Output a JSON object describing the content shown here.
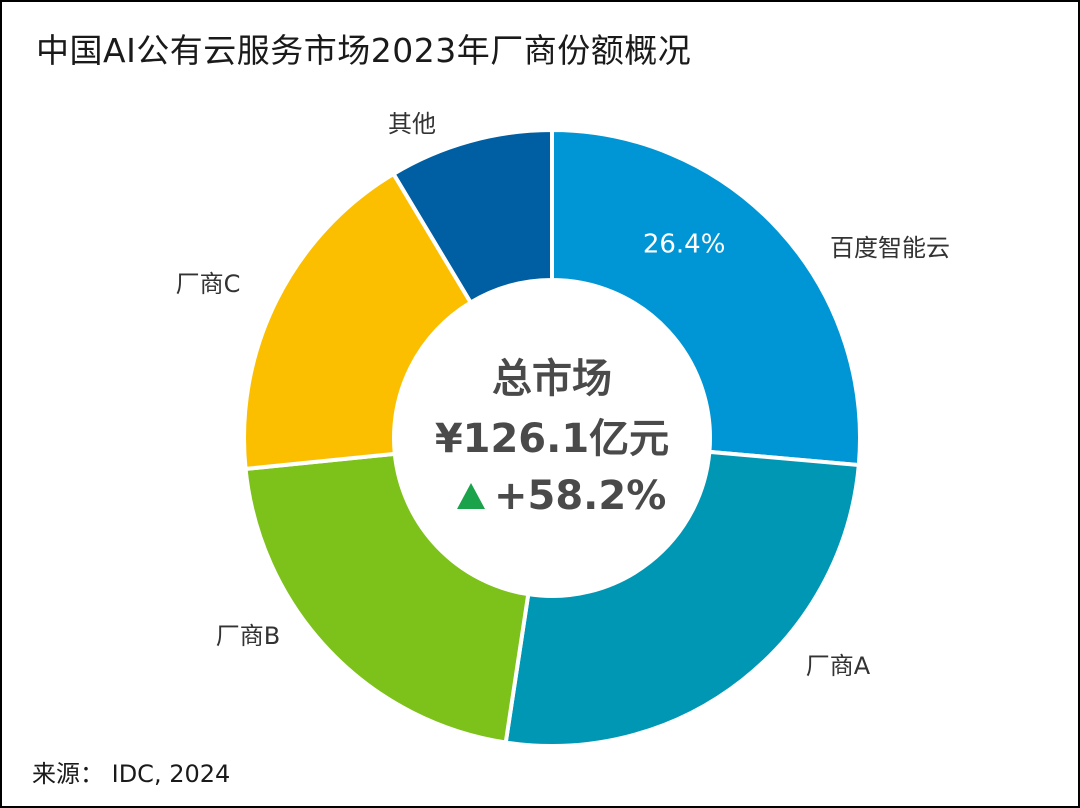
{
  "title": "中国AI公有云服务市场2023年厂商份额概况",
  "source": "来源： IDC, 2024",
  "center": {
    "line1": "总市场",
    "line2": "¥126.1亿元",
    "growth": "+58.2%",
    "growth_icon": "up-triangle-icon",
    "growth_color": "#1aa34a"
  },
  "chart_data": {
    "type": "pie",
    "variant": "donut",
    "title": "中国AI公有云服务市场2023年厂商份额概况",
    "slices": [
      {
        "label": "百度智能云",
        "value": 26.4,
        "data_label": "26.4%",
        "color": "#0096d6"
      },
      {
        "label": "厂商A",
        "value": 26.0,
        "data_label": "",
        "color": "#0097b5"
      },
      {
        "label": "厂商B",
        "value": 21.0,
        "data_label": "",
        "color": "#7dc11b"
      },
      {
        "label": "厂商C",
        "value": 18.0,
        "data_label": "",
        "color": "#fcbf00"
      },
      {
        "label": "其他",
        "value": 8.6,
        "data_label": "",
        "color": "#005ea2"
      }
    ],
    "total_label": "总市场",
    "total_value": "¥126.1亿元",
    "growth": "+58.2%",
    "legend": "none"
  }
}
